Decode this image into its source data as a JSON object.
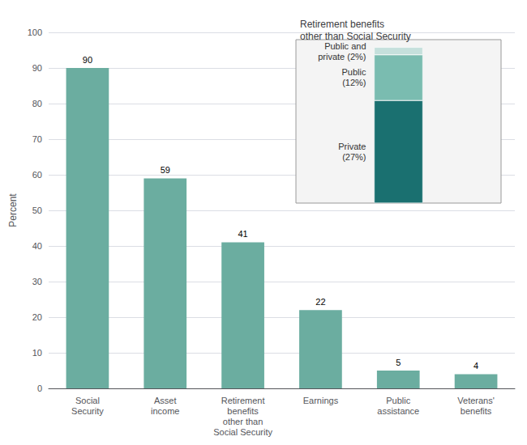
{
  "chart_data": [
    {
      "type": "bar",
      "categories": [
        "Social\nSecurity",
        "Asset\nincome",
        "Retirement\nbenefits\nother than\nSocial Security",
        "Earnings",
        "Public\nassistance",
        "Veterans'\nbenefits"
      ],
      "values": [
        90,
        59,
        41,
        22,
        5,
        4
      ],
      "color": "#6bada0",
      "ylabel": "Percent",
      "ylim": [
        0,
        100
      ],
      "yticks": [
        0,
        10,
        20,
        30,
        40,
        50,
        60,
        70,
        80,
        90,
        100
      ],
      "grid": true,
      "data_labels": true
    },
    {
      "type": "bar",
      "title": "Retirement benefits\nother than Social Security",
      "stacked": true,
      "tick_labels": false,
      "grid": false,
      "ylim": [
        0,
        43
      ],
      "series": [
        {
          "name": "Private\n(27%)",
          "color": "#1a7070",
          "values": [
            27
          ]
        },
        {
          "name": "Public\n(12%)",
          "color": "#7abcb0",
          "values": [
            12
          ]
        },
        {
          "name": "Public and\nprivate (2%)",
          "color": "#c5e0dc",
          "values": [
            2
          ]
        }
      ]
    }
  ]
}
